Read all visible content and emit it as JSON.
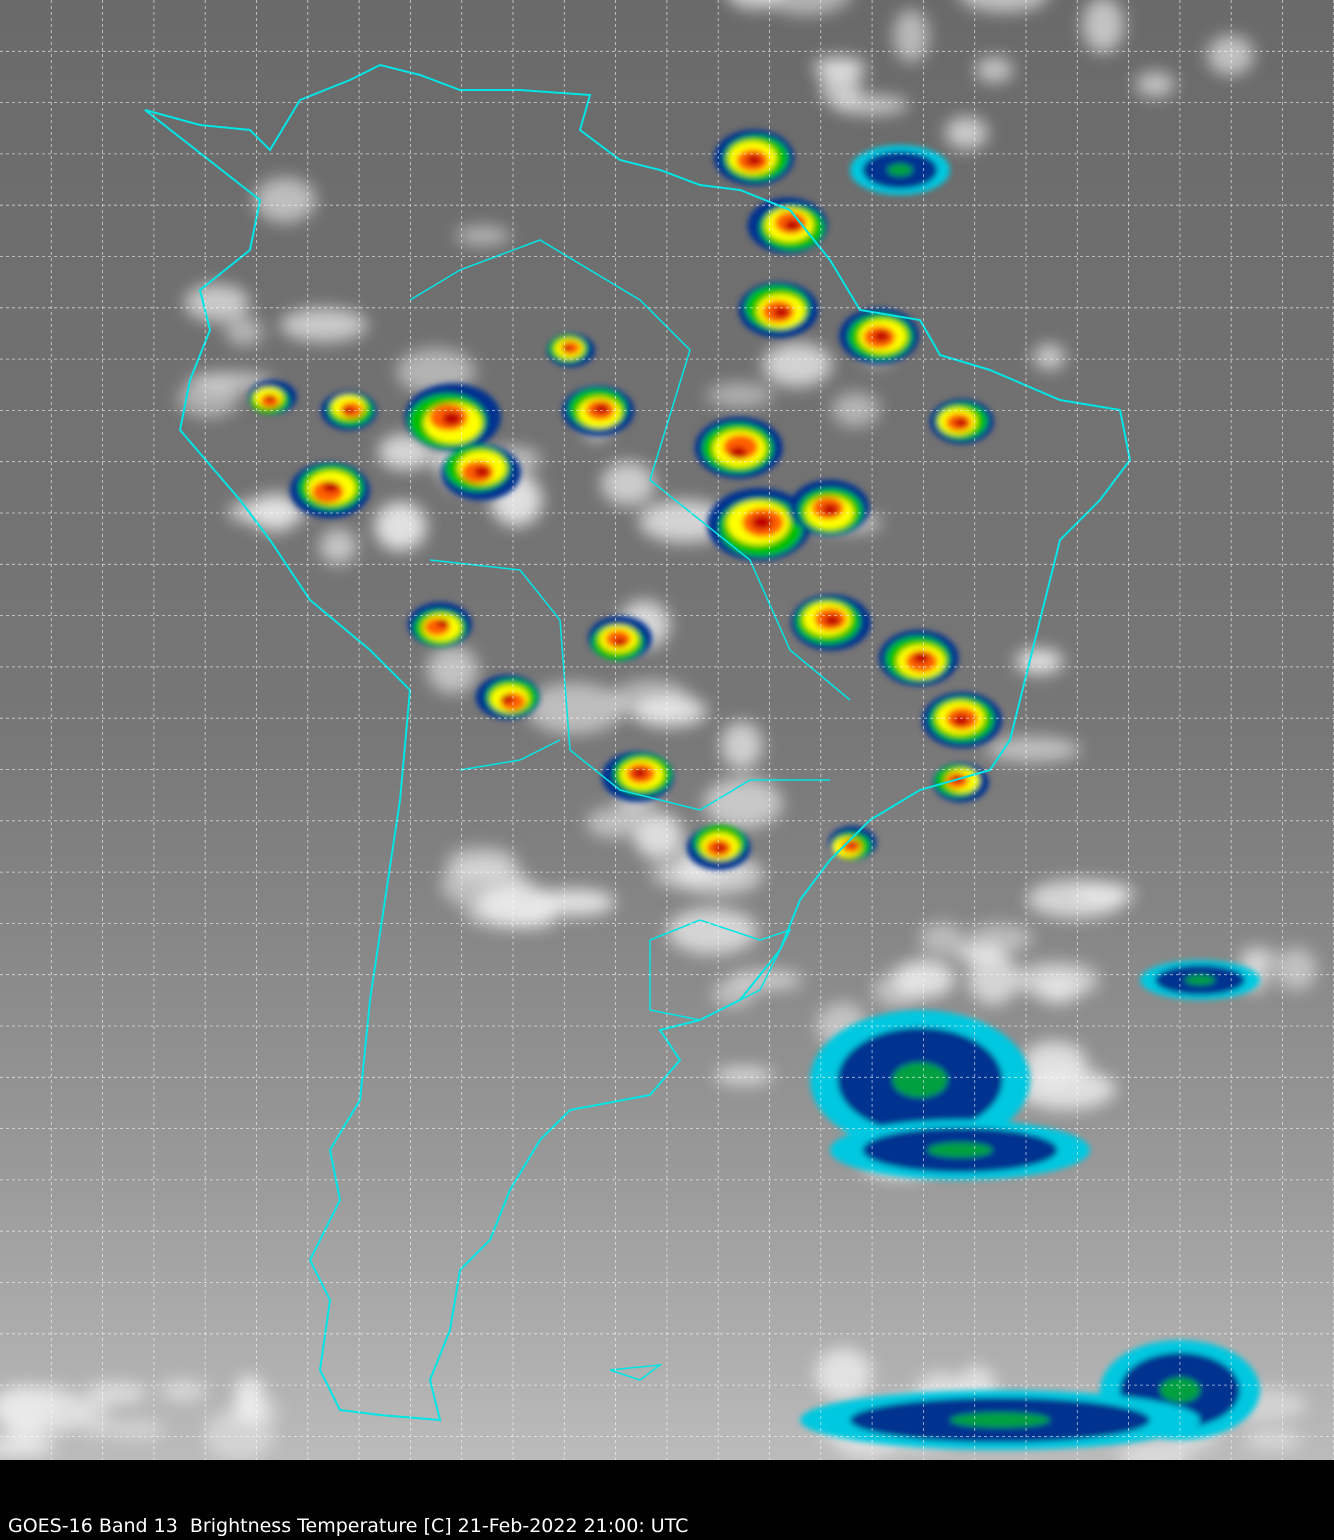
{
  "caption": "GOES-16 Band 13  Brightness Temperature [C] 21-Feb-2022 21:00: UTC",
  "map": {
    "region": "South America",
    "coastline_color": "#00e5e5",
    "gridline_color": "#ffffff",
    "grid": true,
    "colormap": [
      "#ffffff",
      "#00ffff",
      "#003090",
      "#00c000",
      "#ffff00",
      "#ff8000",
      "#ff0000",
      "#600000"
    ]
  }
}
